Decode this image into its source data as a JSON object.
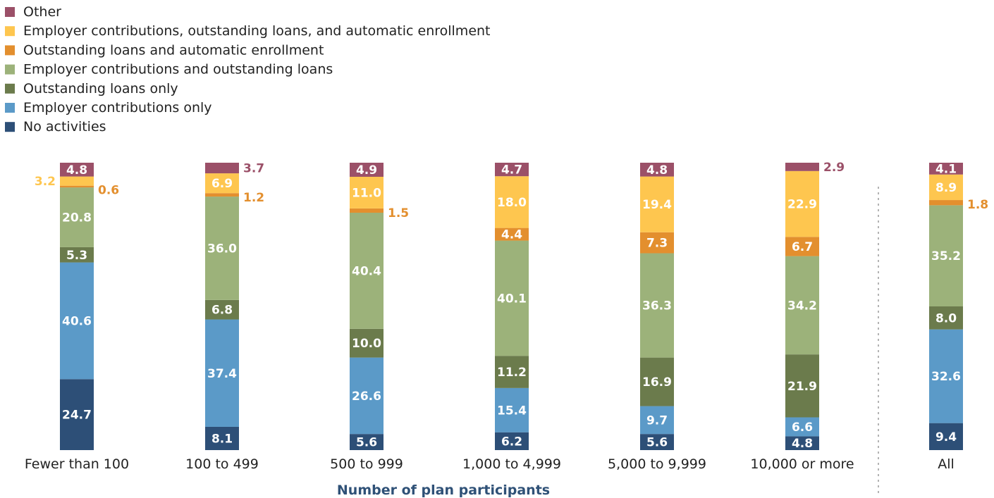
{
  "chart_data": {
    "type": "bar",
    "stacked": true,
    "orientation": "vertical",
    "xlabel": "Number of plan participants",
    "categories": [
      "Fewer than 100",
      "100 to 499",
      "500 to 999",
      "1,000 to 4,999",
      "5,000 to 9,999",
      "10,000 or more",
      "All"
    ],
    "series": [
      {
        "name": "No activities",
        "color": "#2d4f77",
        "values": [
          24.7,
          8.1,
          5.6,
          6.2,
          5.6,
          4.8,
          9.4
        ]
      },
      {
        "name": "Employer contributions only",
        "color": "#5b9ac8",
        "values": [
          40.6,
          37.4,
          26.6,
          15.4,
          9.7,
          6.6,
          32.6
        ]
      },
      {
        "name": "Outstanding loans only",
        "color": "#6b7b4c",
        "values": [
          5.3,
          6.8,
          10.0,
          11.2,
          16.9,
          21.9,
          8.0
        ]
      },
      {
        "name": "Employer contributions and outstanding loans",
        "color": "#9cb27a",
        "values": [
          20.8,
          36.0,
          40.4,
          40.1,
          36.3,
          34.2,
          35.2
        ]
      },
      {
        "name": "Outstanding loans and automatic enrollment",
        "color": "#e38f2e",
        "values": [
          0.6,
          1.2,
          1.5,
          4.4,
          7.3,
          6.7,
          1.8
        ]
      },
      {
        "name": "Employer contributions, outstanding loans, and automatic enrollment",
        "color": "#fec64f",
        "values": [
          3.2,
          6.9,
          11.0,
          18.0,
          19.4,
          22.9,
          8.9
        ]
      },
      {
        "name": "Other",
        "color": "#9b5068",
        "values": [
          4.8,
          3.7,
          4.9,
          4.7,
          4.8,
          2.9,
          4.1
        ]
      }
    ],
    "value_labels": [
      [
        "24.7",
        "40.6",
        "5.3",
        "20.8",
        "0.6",
        "3.2",
        "4.8"
      ],
      [
        "8.1",
        "37.4",
        "6.8",
        "36.0",
        "1.2",
        "6.9",
        "3.7"
      ],
      [
        "5.6",
        "26.6",
        "10.0",
        "40.4",
        "1.5",
        "11.0",
        "4.9"
      ],
      [
        "6.2",
        "15.4",
        "11.2",
        "40.1",
        "4.4",
        "18.0",
        "4.7"
      ],
      [
        "5.6",
        "9.7",
        "16.9",
        "36.3",
        "7.3",
        "19.4",
        "4.8"
      ],
      [
        "4.8",
        "6.6",
        "21.9",
        "34.2",
        "6.7",
        "22.9",
        "2.9"
      ],
      [
        "9.4",
        "32.6",
        "8.0",
        "35.2",
        "1.8",
        "8.9",
        "4.1"
      ]
    ],
    "ylim": [
      0,
      100
    ],
    "legend_position": "top-left",
    "separator_before_last_category": true,
    "grid": false
  }
}
